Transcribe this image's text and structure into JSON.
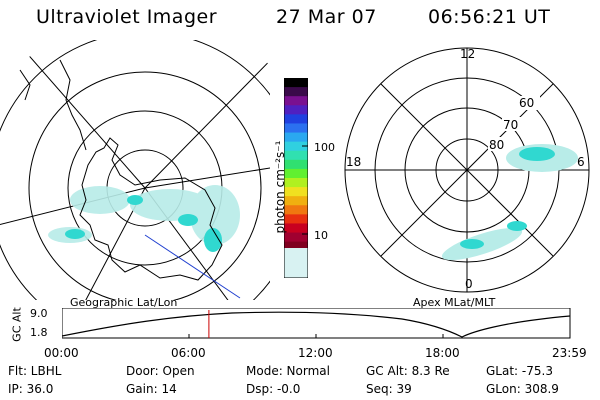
{
  "header": {
    "title": "Ultraviolet Imager",
    "date": "27 Mar 07",
    "time": "06:56:21 UT"
  },
  "left_panel": {
    "caption": "Geographic Lat/Lon"
  },
  "colorbar": {
    "label": "photon cm⁻²s⁻¹",
    "ticks": [
      "100",
      "10"
    ],
    "colors": [
      "#000000",
      "#3a0a4a",
      "#7a1090",
      "#5020c0",
      "#2040e0",
      "#2b70f0",
      "#2aa8f0",
      "#30d0e0",
      "#30e0b0",
      "#30e070",
      "#60f030",
      "#b0f020",
      "#f0e020",
      "#f0b010",
      "#f07810",
      "#e83010",
      "#c80020",
      "#a00030",
      "#800020",
      "#500030",
      "#200040",
      "#000030"
    ]
  },
  "right_panel": {
    "caption": "Apex MLat/MLT",
    "lat_labels": [
      "60",
      "70",
      "80"
    ],
    "mlt_labels": [
      "12",
      "6",
      "0",
      "18"
    ]
  },
  "timeline": {
    "ylabel": "GC Alt",
    "ytick_top": "9.0",
    "ytick_bottom": "1.8",
    "xticks": [
      "00:00",
      "06:00",
      "12:00",
      "18:00",
      "23:59"
    ],
    "marker_time": "06:56",
    "marker_color": "#cc0000"
  },
  "status": {
    "filter": "Flt: LBHL",
    "ip": "IP: 36.0",
    "door": "Door: Open",
    "gain": "Gain: 14",
    "mode": "Mode: Normal",
    "dsp": "Dsp:   -0.0",
    "gc_alt": "GC Alt: 8.3 Re",
    "seq": "Seq: 39",
    "glat": "GLat: -75.3",
    "glon": "GLon: 308.9"
  }
}
